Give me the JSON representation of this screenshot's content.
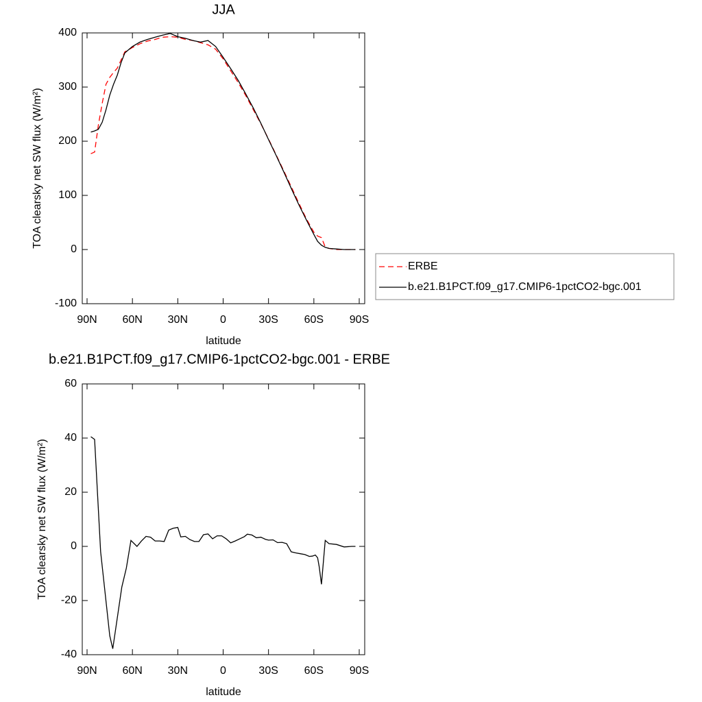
{
  "chart_data": [
    {
      "type": "line",
      "title": "JJA",
      "x_label": "latitude",
      "y_label": "TOA clearsky net SW flux (W/m²)",
      "xlim": [
        90,
        -90
      ],
      "ylim": [
        -100,
        400
      ],
      "xticks": [
        {
          "value": 90,
          "label": "90N"
        },
        {
          "value": 60,
          "label": "60N"
        },
        {
          "value": 30,
          "label": "30N"
        },
        0,
        {
          "value": -30,
          "label": "30S"
        },
        {
          "value": -60,
          "label": "60S"
        },
        {
          "value": -90,
          "label": "90S"
        }
      ],
      "yticks": [
        -100,
        0,
        100,
        200,
        300,
        400
      ],
      "legend": "right",
      "series": [
        {
          "name": "ERBE",
          "color": "#ff0000",
          "dash": true,
          "x": [
            87.5,
            85,
            82.5,
            80,
            77.5,
            75,
            72.5,
            70,
            67.5,
            65,
            60,
            55,
            50,
            45,
            40,
            35,
            30,
            25,
            20,
            15,
            10,
            5,
            0,
            -5,
            -10,
            -15,
            -20,
            -25,
            -30,
            -35,
            -40,
            -45,
            -50,
            -55,
            -60,
            -62.5,
            -65,
            -67.5,
            -70,
            -75,
            -80,
            -85,
            -87.5
          ],
          "values": [
            177,
            180,
            230,
            270,
            305,
            318,
            327,
            335,
            350,
            365,
            373,
            380,
            385,
            388,
            392,
            393,
            392,
            388,
            386,
            382,
            378,
            370,
            352,
            330,
            308,
            284,
            258,
            232,
            204,
            175,
            146,
            116,
            86,
            57,
            32,
            25,
            22,
            5,
            2,
            0,
            0,
            0,
            0
          ]
        },
        {
          "name": "b.e21.B1PCT.f09_g17.CMIP6-1pctCO2-bgc.001",
          "color": "#000000",
          "dash": false,
          "x": [
            87.5,
            85,
            82.5,
            80,
            77.5,
            75,
            72.5,
            70,
            67.5,
            65,
            60,
            55,
            50,
            45,
            40,
            35,
            30,
            25,
            20,
            15,
            10,
            5,
            0,
            -5,
            -10,
            -15,
            -20,
            -25,
            -30,
            -35,
            -40,
            -45,
            -50,
            -55,
            -60,
            -62.5,
            -65,
            -67.5,
            -70,
            -75,
            -80,
            -85,
            -87.5
          ],
          "values": [
            217,
            219,
            222,
            235,
            258,
            285,
            305,
            322,
            345,
            363,
            375,
            383,
            388,
            392,
            396,
            399,
            393,
            390,
            386,
            383,
            386,
            375,
            355,
            334,
            312,
            287,
            261,
            233,
            203,
            174,
            144,
            113,
            83,
            55,
            28,
            15,
            8,
            4,
            2,
            1,
            0,
            0,
            0
          ]
        }
      ]
    },
    {
      "type": "line",
      "title": "b.e21.B1PCT.f09_g17.CMIP6-1pctCO2-bgc.001 - ERBE",
      "x_label": "latitude",
      "y_label": "TOA clearsky net SW flux (W/m²)",
      "xlim": [
        90,
        -90
      ],
      "ylim": [
        -40,
        60
      ],
      "xticks": [
        {
          "value": 90,
          "label": "90N"
        },
        {
          "value": 60,
          "label": "60N"
        },
        {
          "value": 30,
          "label": "30N"
        },
        0,
        {
          "value": -30,
          "label": "30S"
        },
        {
          "value": -60,
          "label": "60S"
        },
        {
          "value": -90,
          "label": "90S"
        }
      ],
      "yticks": [
        -40,
        -20,
        0,
        20,
        40,
        60
      ],
      "series": [
        {
          "color": "#000000",
          "dash": false,
          "x": [
            87.5,
            85,
            81,
            75,
            73,
            67,
            64,
            61,
            57,
            54,
            51,
            48,
            45,
            42,
            39,
            36,
            33,
            30,
            28,
            25,
            22,
            19,
            16,
            13,
            10,
            7,
            4,
            1,
            -2,
            -5,
            -8,
            -11,
            -14,
            -16,
            -19,
            -22,
            -25,
            -28,
            -30,
            -33,
            -36,
            -39,
            -42,
            -45,
            -48,
            -51,
            -54,
            -57,
            -59,
            -61,
            -62.5,
            -63.5,
            -65,
            -67.5,
            -70,
            -75,
            -80,
            -85,
            -87.5
          ],
          "values": [
            40.5,
            39.5,
            -2,
            -33,
            -37.8,
            -15,
            -8,
            2.2,
            0,
            2,
            3.7,
            3.4,
            2,
            2,
            1.8,
            6,
            6.7,
            7,
            3.5,
            3.7,
            2.5,
            1.8,
            1.8,
            4.3,
            4.6,
            2.8,
            3.9,
            3.9,
            2.8,
            1.3,
            2,
            2.8,
            3.6,
            4.5,
            4.2,
            3.2,
            3.4,
            2.6,
            2.3,
            2.4,
            1.4,
            1.5,
            1,
            -2,
            -2.4,
            -2.7,
            -3,
            -3.7,
            -3.6,
            -3.2,
            -4.2,
            -7.5,
            -14,
            2.2,
            1,
            0.7,
            -0.2,
            0,
            0
          ]
        }
      ]
    }
  ]
}
